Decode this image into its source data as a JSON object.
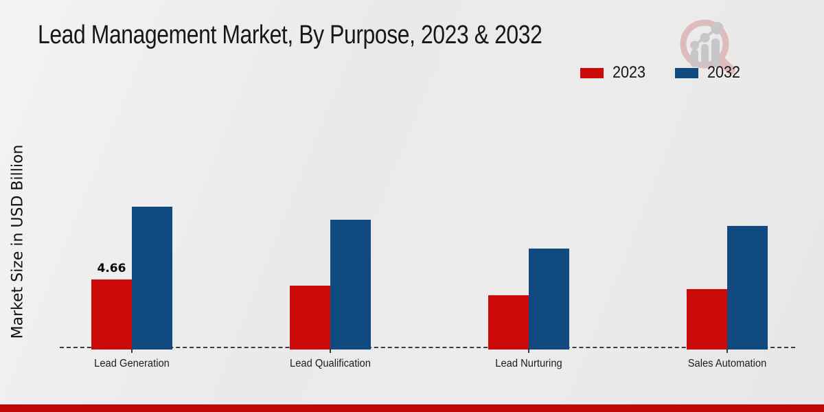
{
  "header": {
    "title": "Lead Management Market, By Purpose, 2023 & 2032"
  },
  "ylabel": "Market Size in USD Billion",
  "legend": {
    "items": [
      {
        "label": "2023",
        "color": "#cb0a0a"
      },
      {
        "label": "2032",
        "color": "#114981"
      }
    ]
  },
  "logo": {
    "name": "magnifier-bar-chart-logo"
  },
  "chart_data": {
    "type": "bar",
    "title": "Lead Management Market, By Purpose, 2023 & 2032",
    "ylabel": "Market Size in USD Billion",
    "categories": [
      "Lead Generation",
      "Lead Qualification",
      "Lead Nurturing",
      "Sales Automation"
    ],
    "series": [
      {
        "name": "2023",
        "color": "#cb0a0a",
        "values": [
          4.66,
          4.25,
          3.6,
          4.0
        ]
      },
      {
        "name": "2032",
        "color": "#114981",
        "values": [
          9.5,
          8.6,
          6.7,
          8.2
        ]
      }
    ],
    "annotations": [
      {
        "series_index": 0,
        "category_index": 0,
        "text": "4.66"
      }
    ],
    "ylim": [
      0,
      14
    ],
    "grid": false,
    "baseline_style": "dashed",
    "legend_position": "top-right"
  },
  "footer": {
    "bar_color": "#c10606"
  }
}
